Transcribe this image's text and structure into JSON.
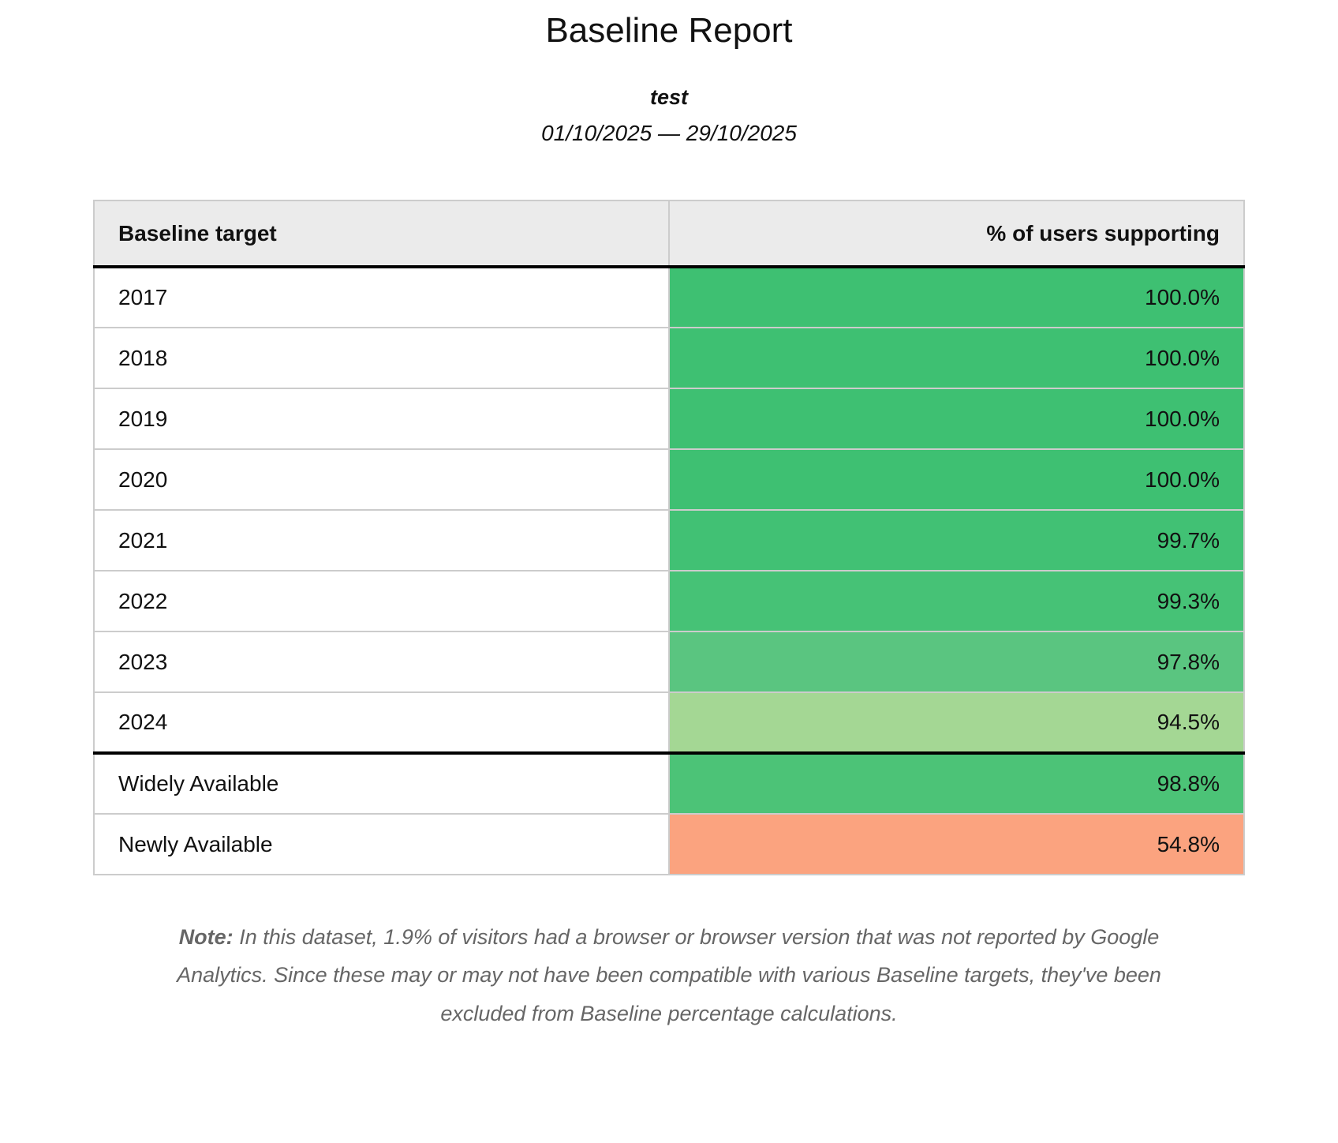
{
  "report": {
    "title": "Baseline Report",
    "subtitle": "test",
    "date_range": "01/10/2025 — 29/10/2025"
  },
  "table": {
    "columns": [
      {
        "label": "Baseline target"
      },
      {
        "label": "% of users supporting"
      }
    ],
    "rows": [
      {
        "target": "2017",
        "value": "100.0%",
        "color": "#3ec072",
        "group": "year"
      },
      {
        "target": "2018",
        "value": "100.0%",
        "color": "#3ec072",
        "group": "year"
      },
      {
        "target": "2019",
        "value": "100.0%",
        "color": "#3ec072",
        "group": "year"
      },
      {
        "target": "2020",
        "value": "100.0%",
        "color": "#3ec072",
        "group": "year"
      },
      {
        "target": "2021",
        "value": "99.7%",
        "color": "#41c174",
        "group": "year"
      },
      {
        "target": "2022",
        "value": "99.3%",
        "color": "#46c276",
        "group": "year"
      },
      {
        "target": "2023",
        "value": "97.8%",
        "color": "#5ac580",
        "group": "year"
      },
      {
        "target": "2024",
        "value": "94.5%",
        "color": "#a4d794",
        "group": "year"
      },
      {
        "target": "Widely Available",
        "value": "98.8%",
        "color": "#4cc377",
        "group": "availability"
      },
      {
        "target": "Newly Available",
        "value": "54.8%",
        "color": "#fba37f",
        "group": "availability"
      }
    ]
  },
  "note": {
    "label": "Note:",
    "text": "In this dataset, 1.9% of visitors had a browser or browser version that was not reported by Google Analytics. Since these may or may not have been compatible with various Baseline targets, they've been excluded from Baseline percentage calculations."
  },
  "colors": {
    "header_background": "#ebebeb",
    "grid_border": "#cccccc",
    "group_separator": "#000000",
    "green_full": "#3ec072",
    "green_high": "#4cc377",
    "green_mid": "#5ac580",
    "green_light": "#a4d794",
    "salmon_low": "#fba37f",
    "note_text": "#666666"
  },
  "chart_data": {
    "type": "table",
    "title": "Baseline Report",
    "subtitle": "test",
    "date_range": "01/10/2025 — 29/10/2025",
    "columns": [
      "Baseline target",
      "% of users supporting"
    ],
    "rows": [
      [
        "2017",
        100.0
      ],
      [
        "2018",
        100.0
      ],
      [
        "2019",
        100.0
      ],
      [
        "2020",
        100.0
      ],
      [
        "2021",
        99.7
      ],
      [
        "2022",
        99.3
      ],
      [
        "2023",
        97.8
      ],
      [
        "2024",
        94.5
      ],
      [
        "Widely Available",
        98.8
      ],
      [
        "Newly Available",
        54.8
      ]
    ],
    "value_unit": "percent",
    "color_scale": "green (high support) to salmon (low support)",
    "excluded_visitors_percent": 1.9
  }
}
